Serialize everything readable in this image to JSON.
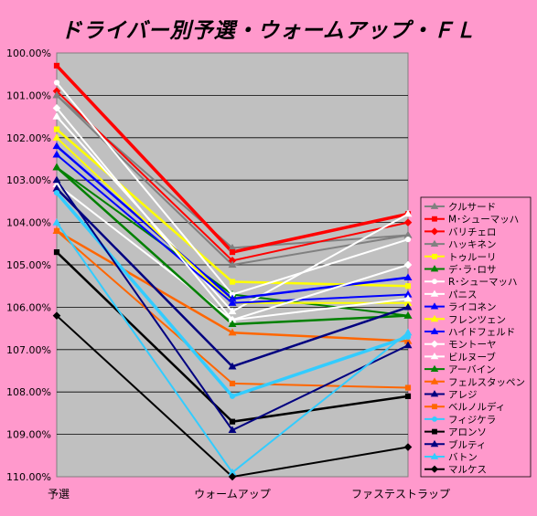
{
  "chart_data": {
    "type": "line",
    "title": "ドライバー別予選・ウォームアップ・ＦＬ",
    "xlabel": "",
    "ylabel": "",
    "categories": [
      "予選",
      "ウォームアップ",
      "ファステストラップ"
    ],
    "y_reversed": true,
    "ylim": [
      100,
      110
    ],
    "yticks": [
      "100.00%",
      "101.00%",
      "102.00%",
      "103.00%",
      "104.00%",
      "105.00%",
      "106.00%",
      "107.00%",
      "108.00%",
      "109.00%",
      "110.00%"
    ],
    "grid": true,
    "legend_position": "right",
    "series": [
      {
        "name": "クルサード",
        "color": "#808080",
        "marker": "triangle",
        "values": [
          101.0,
          104.6,
          104.3
        ]
      },
      {
        "name": "M･シューマッハ",
        "color": "#ff0000",
        "marker": "square",
        "values": [
          100.3,
          104.7,
          103.8
        ]
      },
      {
        "name": "バリチェロ",
        "color": "#ff0000",
        "marker": "diamond",
        "values": [
          100.9,
          104.9,
          104.0
        ]
      },
      {
        "name": "ハッキネン",
        "color": "#808080",
        "marker": "triangle",
        "values": [
          101.0,
          105.0,
          104.3
        ]
      },
      {
        "name": "トゥルーリ",
        "color": "#ffff00",
        "marker": "square",
        "values": [
          101.8,
          105.4,
          105.5
        ]
      },
      {
        "name": "デ･ラ･ロサ",
        "color": "#008000",
        "marker": "triangle",
        "values": [
          102.7,
          105.7,
          106.2
        ]
      },
      {
        "name": "R･シューマッハ",
        "color": "#ffffff",
        "marker": "circle",
        "values": [
          100.7,
          105.7,
          104.4
        ]
      },
      {
        "name": "パニス",
        "color": "#ffffff",
        "marker": "triangle",
        "values": [
          101.5,
          106.1,
          103.8
        ]
      },
      {
        "name": "ライコネン",
        "color": "#0000ff",
        "marker": "triangle",
        "values": [
          102.2,
          105.8,
          105.3
        ]
      },
      {
        "name": "フレンツェン",
        "color": "#ffff00",
        "marker": "triangle",
        "values": [
          102.0,
          105.9,
          105.9
        ]
      },
      {
        "name": "ハイドフェルド",
        "color": "#0000ff",
        "marker": "triangle",
        "values": [
          102.4,
          105.9,
          105.7
        ]
      },
      {
        "name": "モントーヤ",
        "color": "#ffffff",
        "marker": "diamond",
        "values": [
          101.3,
          106.3,
          105.0
        ]
      },
      {
        "name": "ビルヌーブ",
        "color": "#ffffff",
        "marker": "triangle",
        "values": [
          103.1,
          106.3,
          105.8
        ]
      },
      {
        "name": "アーバイン",
        "color": "#008000",
        "marker": "triangle",
        "values": [
          102.7,
          106.4,
          106.2
        ]
      },
      {
        "name": "フェルスタッペン",
        "color": "#ff6600",
        "marker": "triangle",
        "values": [
          104.2,
          106.6,
          106.8
        ]
      },
      {
        "name": "アレジ",
        "color": "#000080",
        "marker": "triangle",
        "values": [
          103.2,
          107.4,
          106.0
        ]
      },
      {
        "name": "ベルノルディ",
        "color": "#ff6600",
        "marker": "square",
        "values": [
          104.2,
          107.8,
          107.9
        ]
      },
      {
        "name": "フィジケラ",
        "color": "#33ccff",
        "marker": "circle",
        "values": [
          103.3,
          108.1,
          106.7
        ]
      },
      {
        "name": "アロンソ",
        "color": "#000000",
        "marker": "square",
        "values": [
          104.7,
          108.7,
          108.1
        ]
      },
      {
        "name": "ブルティ",
        "color": "#000080",
        "marker": "triangle",
        "values": [
          103.0,
          108.9,
          106.9
        ]
      },
      {
        "name": "バトン",
        "color": "#33ccff",
        "marker": "triangle",
        "values": [
          104.0,
          109.9,
          106.6
        ]
      },
      {
        "name": "マルケス",
        "color": "#000000",
        "marker": "diamond",
        "values": [
          106.2,
          110.0,
          109.3
        ]
      }
    ]
  }
}
